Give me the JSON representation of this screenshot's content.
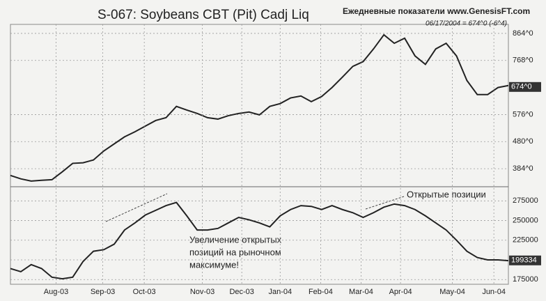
{
  "chart_data": [
    {
      "type": "line",
      "title": "S-067: Soybeans CBT (Pit) Cadj Liq",
      "subtitle": "Ежедневные показатели www.GenesisFT.com",
      "note": "06/17/2004 = 674^0 (-6^4)",
      "x": [
        0,
        1,
        2,
        3,
        4,
        5,
        6,
        7,
        8,
        9,
        10,
        11,
        12,
        13,
        14,
        15,
        16,
        17,
        18,
        19,
        20,
        21,
        22,
        23,
        24,
        25,
        26,
        27,
        28,
        29,
        30,
        31,
        32,
        33,
        34,
        35,
        36,
        37,
        38,
        39,
        40,
        41,
        42,
        43,
        44,
        45,
        46,
        47,
        48
      ],
      "series": [
        {
          "color": "#222222",
          "values": [
            360,
            348,
            340,
            343,
            345,
            373,
            403,
            405,
            415,
            447,
            472,
            497,
            515,
            535,
            555,
            565,
            605,
            592,
            580,
            565,
            560,
            572,
            580,
            585,
            575,
            605,
            615,
            635,
            642,
            622,
            640,
            672,
            709,
            747,
            764,
            809,
            859,
            829,
            847,
            784,
            754,
            809,
            829,
            784,
            697,
            647,
            647,
            672,
            679
          ]
        }
      ],
      "xlim": [
        0,
        48
      ],
      "ylim": [
        320,
        896
      ],
      "yticks": [
        {
          "value": 384,
          "label": "384^0"
        },
        {
          "value": 480,
          "label": "480^0"
        },
        {
          "value": 576,
          "label": "576^0"
        },
        {
          "value": 768,
          "label": "768^0"
        },
        {
          "value": 864,
          "label": "864^0"
        }
      ],
      "current_value": {
        "value": 674,
        "label": "674^0"
      },
      "grid": true
    },
    {
      "type": "line",
      "annotations": [
        "Увеличение открытых",
        "позиций на рыночном",
        "максимуме!",
        "Открытые позиции"
      ],
      "x": [
        0,
        1,
        2,
        3,
        4,
        5,
        6,
        7,
        8,
        9,
        10,
        11,
        12,
        13,
        14,
        15,
        16,
        17,
        18,
        19,
        20,
        21,
        22,
        23,
        24,
        25,
        26,
        27,
        28,
        29,
        30,
        31,
        32,
        33,
        34,
        35,
        36,
        37,
        38,
        39,
        40,
        41,
        42,
        43,
        44,
        45,
        46,
        47,
        48
      ],
      "series": [
        {
          "color": "#222222",
          "values": [
            189000,
            185000,
            194000,
            189000,
            178000,
            176000,
            178000,
            198000,
            211000,
            213000,
            220000,
            238000,
            247000,
            257000,
            263000,
            269000,
            273000,
            256000,
            238000,
            238000,
            240000,
            247000,
            254000,
            251000,
            247000,
            242000,
            256000,
            264000,
            269000,
            268000,
            264000,
            269000,
            264000,
            260000,
            254000,
            260000,
            267000,
            271000,
            269000,
            264000,
            256000,
            247000,
            238000,
            225000,
            211000,
            203000,
            200000,
            200000,
            199000
          ]
        }
      ],
      "xlim": [
        0,
        48
      ],
      "ylim": [
        169000,
        293000
      ],
      "yticks": [
        175000,
        200000,
        225000,
        250000,
        275000
      ],
      "xticks": [
        {
          "value": 4.4,
          "label": "Aug-03"
        },
        {
          "value": 8.9,
          "label": "Sep-03"
        },
        {
          "value": 12.9,
          "label": "Oct-03"
        },
        {
          "value": 18.5,
          "label": "Nov-03"
        },
        {
          "value": 22.3,
          "label": "Dec-03"
        },
        {
          "value": 26,
          "label": "Jan-04"
        },
        {
          "value": 29.9,
          "label": "Feb-04"
        },
        {
          "value": 33.8,
          "label": "Mar-04"
        },
        {
          "value": 37.6,
          "label": "Apr-04"
        },
        {
          "value": 42.6,
          "label": "May-04"
        },
        {
          "value": 46.6,
          "label": "Jun-04"
        }
      ],
      "current_value": 199334,
      "grid": true
    }
  ]
}
